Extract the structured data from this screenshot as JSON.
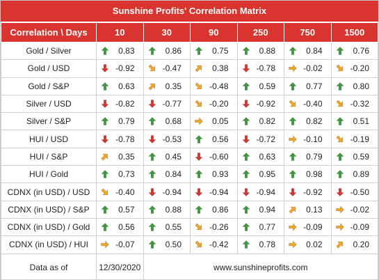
{
  "header": {
    "title": "Sunshine Profits' Correlation Matrix"
  },
  "table": {
    "columns": [
      "Correlation \\ Days",
      "10",
      "30",
      "90",
      "250",
      "750",
      "1500"
    ],
    "rows": [
      {
        "label": "Gold / Silver",
        "values": [
          "0.83",
          "0.86",
          "0.75",
          "0.88",
          "0.84",
          "0.76"
        ],
        "arrows": [
          "up",
          "up",
          "up",
          "up",
          "up",
          "up"
        ]
      },
      {
        "label": "Gold / USD",
        "values": [
          "-0.92",
          "-0.47",
          "0.38",
          "-0.78",
          "-0.02",
          "-0.20"
        ],
        "arrows": [
          "down",
          "down-right",
          "up-right",
          "down",
          "right",
          "down-right"
        ]
      },
      {
        "label": "Gold / S&P",
        "values": [
          "0.63",
          "0.35",
          "-0.48",
          "0.59",
          "0.77",
          "0.80"
        ],
        "arrows": [
          "up",
          "up-right",
          "down-right",
          "up",
          "up",
          "up"
        ]
      },
      {
        "label": "Silver / USD",
        "values": [
          "-0.82",
          "-0.77",
          "-0.20",
          "-0.92",
          "-0.40",
          "-0.32"
        ],
        "arrows": [
          "down",
          "down",
          "down-right",
          "down",
          "down-right",
          "down-right"
        ]
      },
      {
        "label": "Silver / S&P",
        "values": [
          "0.79",
          "0.68",
          "0.05",
          "0.82",
          "0.82",
          "0.51"
        ],
        "arrows": [
          "up",
          "up",
          "right",
          "up",
          "up",
          "up"
        ]
      },
      {
        "label": "HUI / USD",
        "values": [
          "-0.78",
          "-0.53",
          "0.56",
          "-0.72",
          "-0.10",
          "-0.19"
        ],
        "arrows": [
          "down",
          "down",
          "up",
          "down",
          "right",
          "down-right"
        ]
      },
      {
        "label": "HUI / S&P",
        "values": [
          "0.35",
          "0.45",
          "-0.60",
          "0.63",
          "0.79",
          "0.59"
        ],
        "arrows": [
          "up-right",
          "up",
          "down",
          "up",
          "up",
          "up"
        ]
      },
      {
        "label": "HUI / Gold",
        "values": [
          "0.73",
          "0.84",
          "0.93",
          "0.95",
          "0.98",
          "0.89"
        ],
        "arrows": [
          "up",
          "up",
          "up",
          "up",
          "up",
          "up"
        ]
      },
      {
        "label": "CDNX (in USD) / USD",
        "values": [
          "-0.40",
          "-0.94",
          "-0.94",
          "-0.94",
          "-0.92",
          "-0.50"
        ],
        "arrows": [
          "down-right",
          "down",
          "down",
          "down",
          "down",
          "down"
        ]
      },
      {
        "label": "CDNX (in USD) / S&P",
        "values": [
          "0.57",
          "0.88",
          "0.86",
          "0.94",
          "0.13",
          "-0.02"
        ],
        "arrows": [
          "up",
          "up",
          "up",
          "up",
          "up-right",
          "right"
        ]
      },
      {
        "label": "CDNX (in USD) / Gold",
        "values": [
          "0.56",
          "0.55",
          "-0.26",
          "0.77",
          "-0.09",
          "-0.09"
        ],
        "arrows": [
          "up",
          "up",
          "down-right",
          "up",
          "right",
          "right"
        ]
      },
      {
        "label": "CDNX (in USD) / HUI",
        "values": [
          "-0.07",
          "0.50",
          "-0.42",
          "0.78",
          "0.02",
          "0.20"
        ],
        "arrows": [
          "right",
          "up",
          "down-right",
          "up",
          "right",
          "up-right"
        ]
      }
    ],
    "arrow_colors": {
      "up": "#3c9a3c",
      "down": "#d9342b",
      "up-right": "#f0a526",
      "right": "#f0a526",
      "down-right": "#f0a526"
    }
  },
  "footer": {
    "label": "Data as of",
    "date": "12/30/2020",
    "url": "www.sunshineprofits.com"
  }
}
